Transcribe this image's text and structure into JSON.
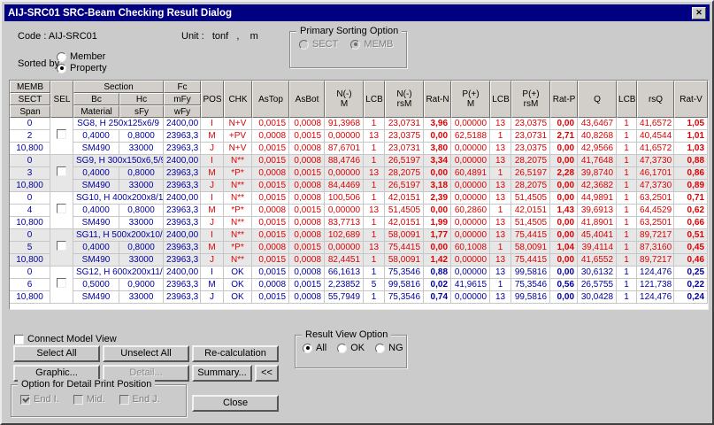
{
  "colors": {
    "titlebar": "#000080",
    "ng_text": "#dd0202",
    "ok_text": "#0000a0",
    "dialog_bg": "#cbcbcb",
    "shade_row": "#e7e7e7"
  },
  "window": {
    "title": "AIJ-SRC01 SRC-Beam Checking Result Dialog",
    "close_glyph": "✕"
  },
  "info": {
    "code_label": "Code : AIJ-SRC01",
    "unit_label": "Unit :   tonf   ,    m",
    "sorted_by_label": "Sorted by",
    "sort_options": [
      {
        "label": "Member",
        "selected": false
      },
      {
        "label": "Property",
        "selected": true
      }
    ]
  },
  "primary_sorting": {
    "title": "Primary Sorting Option",
    "options": [
      {
        "label": "SECT",
        "selected": false
      },
      {
        "label": "MEMB",
        "selected": true
      }
    ]
  },
  "table": {
    "header": {
      "col1": [
        "MEMB",
        "SECT",
        "Span"
      ],
      "sel": "SEL",
      "section": "Section",
      "bc": "Bc",
      "hc": "Hc",
      "material": "Material",
      "sfy": "sFy",
      "fc": [
        "Fc",
        "mFy",
        "wFy"
      ],
      "cols": [
        "POS",
        "CHK",
        "AsTop",
        "AsBot",
        "N(-)\nM",
        "LCB",
        "N(-)\nrsM",
        "Rat-N",
        "P(+)\nM",
        "LCB",
        "P(+)\nrsM",
        "Rat-P",
        "Q",
        "LCB",
        "rsQ",
        "Rat-V"
      ]
    },
    "rows": [
      {
        "kind": "top",
        "c1": "0",
        "section": "SG8, H 250x125x6/9",
        "fc": "2400,00",
        "status": "ng",
        "shade": false,
        "sel_checked": false,
        "vals": [
          "I",
          "N+V",
          "0,0015",
          "0,0008",
          "91,3968",
          "1",
          "23,0731",
          "3,96",
          "0,00000",
          "13",
          "23,0375",
          "0,00",
          "43,6467",
          "1",
          "41,6572",
          "1,05"
        ]
      },
      {
        "kind": "mid",
        "c1": "2",
        "bc": "0,4000",
        "hc": "0,8000",
        "fc": "23963,3",
        "status": "ng",
        "shade": false,
        "vals": [
          "M",
          "+PV",
          "0,0008",
          "0,0015",
          "0,00000",
          "13",
          "23,0375",
          "0,00",
          "62,5188",
          "1",
          "23,0731",
          "2,71",
          "40,8268",
          "1",
          "40,4544",
          "1,01"
        ]
      },
      {
        "kind": "bot",
        "c1": "10,800",
        "bc": "SM490",
        "hc": "33000",
        "fc": "23963,3",
        "status": "ng",
        "shade": false,
        "vals": [
          "J",
          "N+V",
          "0,0015",
          "0,0008",
          "87,6701",
          "1",
          "23,0731",
          "3,80",
          "0,00000",
          "13",
          "23,0375",
          "0,00",
          "42,9566",
          "1",
          "41,6572",
          "1,03"
        ]
      },
      {
        "kind": "top",
        "c1": "0",
        "section": "SG9, H 300x150x6,5/9",
        "fc": "2400,00",
        "status": "ng",
        "shade": true,
        "sel_checked": false,
        "vals": [
          "I",
          "N**",
          "0,0015",
          "0,0008",
          "88,4746",
          "1",
          "26,5197",
          "3,34",
          "0,00000",
          "13",
          "28,2075",
          "0,00",
          "41,7648",
          "1",
          "47,3730",
          "0,88"
        ]
      },
      {
        "kind": "mid",
        "c1": "3",
        "bc": "0,4000",
        "hc": "0,8000",
        "fc": "23963,3",
        "status": "ng",
        "shade": true,
        "vals": [
          "M",
          "*P*",
          "0,0008",
          "0,0015",
          "0,00000",
          "13",
          "28,2075",
          "0,00",
          "60,4891",
          "1",
          "26,5197",
          "2,28",
          "39,8740",
          "1",
          "46,1701",
          "0,86"
        ]
      },
      {
        "kind": "bot",
        "c1": "10,800",
        "bc": "SM490",
        "hc": "33000",
        "fc": "23963,3",
        "status": "ng",
        "shade": true,
        "vals": [
          "J",
          "N**",
          "0,0015",
          "0,0008",
          "84,4469",
          "1",
          "26,5197",
          "3,18",
          "0,00000",
          "13",
          "28,2075",
          "0,00",
          "42,3682",
          "1",
          "47,3730",
          "0,89"
        ]
      },
      {
        "kind": "top",
        "c1": "0",
        "section": "SG10, H 400x200x8/1",
        "fc": "2400,00",
        "status": "ng",
        "shade": false,
        "sel_checked": false,
        "vals": [
          "I",
          "N**",
          "0,0015",
          "0,0008",
          "100,506",
          "1",
          "42,0151",
          "2,39",
          "0,00000",
          "13",
          "51,4505",
          "0,00",
          "44,9891",
          "1",
          "63,2501",
          "0,71"
        ]
      },
      {
        "kind": "mid",
        "c1": "4",
        "bc": "0,4000",
        "hc": "0,8000",
        "fc": "23963,3",
        "status": "ng",
        "shade": false,
        "vals": [
          "M",
          "*P*",
          "0,0008",
          "0,0015",
          "0,00000",
          "13",
          "51,4505",
          "0,00",
          "60,2860",
          "1",
          "42,0151",
          "1,43",
          "39,6913",
          "1",
          "64,4529",
          "0,62"
        ]
      },
      {
        "kind": "bot",
        "c1": "10,800",
        "bc": "SM490",
        "hc": "33000",
        "fc": "23963,3",
        "status": "ng",
        "shade": false,
        "vals": [
          "J",
          "N**",
          "0,0015",
          "0,0008",
          "83,7713",
          "1",
          "42,0151",
          "1,99",
          "0,00000",
          "13",
          "51,4505",
          "0,00",
          "41,8901",
          "1",
          "63,2501",
          "0,66"
        ]
      },
      {
        "kind": "top",
        "c1": "0",
        "section": "SG11, H 500x200x10/",
        "fc": "2400,00",
        "status": "ng",
        "shade": true,
        "sel_checked": false,
        "vals": [
          "I",
          "N**",
          "0,0015",
          "0,0008",
          "102,689",
          "1",
          "58,0091",
          "1,77",
          "0,00000",
          "13",
          "75,4415",
          "0,00",
          "45,4041",
          "1",
          "89,7217",
          "0,51"
        ]
      },
      {
        "kind": "mid",
        "c1": "5",
        "bc": "0,4000",
        "hc": "0,8000",
        "fc": "23963,3",
        "status": "ng",
        "shade": true,
        "vals": [
          "M",
          "*P*",
          "0,0008",
          "0,0015",
          "0,00000",
          "13",
          "75,4415",
          "0,00",
          "60,1008",
          "1",
          "58,0091",
          "1,04",
          "39,4114",
          "1",
          "87,3160",
          "0,45"
        ]
      },
      {
        "kind": "bot",
        "c1": "10,800",
        "bc": "SM490",
        "hc": "33000",
        "fc": "23963,3",
        "status": "ng",
        "shade": true,
        "vals": [
          "J",
          "N**",
          "0,0015",
          "0,0008",
          "82,4451",
          "1",
          "58,0091",
          "1,42",
          "0,00000",
          "13",
          "75,4415",
          "0,00",
          "41,6552",
          "1",
          "89,7217",
          "0,46"
        ]
      },
      {
        "kind": "top",
        "c1": "0",
        "section": "SG12, H 600x200x11/",
        "fc": "2400,00",
        "status": "ok",
        "shade": false,
        "sel_checked": false,
        "vals": [
          "I",
          "OK",
          "0,0015",
          "0,0008",
          "66,1613",
          "1",
          "75,3546",
          "0,88",
          "0,00000",
          "13",
          "99,5816",
          "0,00",
          "30,6132",
          "1",
          "124,476",
          "0,25"
        ]
      },
      {
        "kind": "mid",
        "c1": "6",
        "bc": "0,5000",
        "hc": "0,9000",
        "fc": "23963,3",
        "status": "ok",
        "shade": false,
        "vals": [
          "M",
          "OK",
          "0,0008",
          "0,0015",
          "2,23852",
          "5",
          "99,5816",
          "0,02",
          "41,9615",
          "1",
          "75,3546",
          "0,56",
          "26,5755",
          "1",
          "121,738",
          "0,22"
        ]
      },
      {
        "kind": "bot",
        "c1": "10,800",
        "bc": "SM490",
        "hc": "33000",
        "fc": "23963,3",
        "status": "ok",
        "shade": false,
        "vals": [
          "J",
          "OK",
          "0,0015",
          "0,0008",
          "55,7949",
          "1",
          "75,3546",
          "0,74",
          "0,00000",
          "13",
          "99,5816",
          "0,00",
          "30,0428",
          "1",
          "124,476",
          "0,24"
        ]
      }
    ]
  },
  "footer": {
    "connect_model_view": {
      "label": "Connect Model View",
      "checked": false
    },
    "buttons": {
      "select_all": "Select All",
      "unselect_all": "Unselect All",
      "recalculation": "Re-calculation",
      "graphic": "Graphic...",
      "detail": "Detail...",
      "summary": "Summary...",
      "collapse": "<<",
      "close": "Close"
    },
    "result_view": {
      "title": "Result View Option",
      "options": [
        {
          "label": "All",
          "selected": true
        },
        {
          "label": "OK",
          "selected": false
        },
        {
          "label": "NG",
          "selected": false
        }
      ]
    },
    "detail_print": {
      "title": "Option for Detail Print Position",
      "options": [
        {
          "label": "End I.",
          "checked": true
        },
        {
          "label": "Mid.",
          "checked": false
        },
        {
          "label": "End J.",
          "checked": false
        }
      ]
    }
  }
}
